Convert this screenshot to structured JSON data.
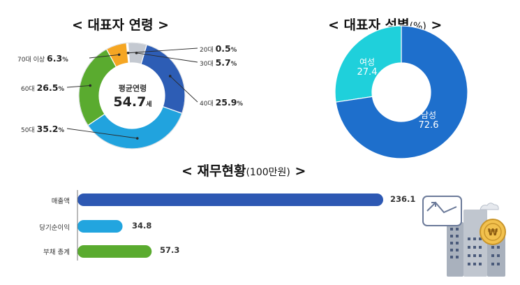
{
  "titles": {
    "age": "< 대표자 연령 >",
    "gender": "< 대표자 성별",
    "gender_unit": "(%)",
    "gender_close": " >",
    "finance": "< 재무현황",
    "finance_unit": "(100만원)",
    "finance_close": " >"
  },
  "age_center": {
    "label": "평균연령",
    "value": "54.7",
    "unit": "세"
  },
  "age_labels": [
    {
      "cat": "20대",
      "val": "0.5",
      "unit": "%"
    },
    {
      "cat": "30대",
      "val": "5.7",
      "unit": "%"
    },
    {
      "cat": "40대",
      "val": "25.9",
      "unit": "%"
    },
    {
      "cat": "50대",
      "val": "35.2",
      "unit": "%"
    },
    {
      "cat": "60대",
      "val": "26.5",
      "unit": "%"
    },
    {
      "cat": "70대 이상",
      "val": "6.3",
      "unit": "%"
    }
  ],
  "gender_labels": [
    {
      "name": "여성",
      "val": "27.4"
    },
    {
      "name": "남성",
      "val": "72.6"
    }
  ],
  "bar_labels": [
    {
      "cat": "매출액",
      "val": "236.1"
    },
    {
      "cat": "당기순이익",
      "val": "34.8"
    },
    {
      "cat": "부채 총계",
      "val": "57.3"
    }
  ],
  "colors": {
    "age": [
      "#ffffff",
      "#c4c9d1",
      "#2d5db5",
      "#21a3de",
      "#5aab2f",
      "#f5a623"
    ],
    "gender": [
      "#1fd0db",
      "#1e6fcc"
    ],
    "bars": [
      "#2d58b3",
      "#22a5df",
      "#5aab2f"
    ]
  },
  "chart_data": [
    {
      "type": "pie",
      "title": "< 대표자 연령 >",
      "categories": [
        "20대",
        "30대",
        "40대",
        "50대",
        "60대",
        "70대 이상"
      ],
      "values": [
        0.5,
        5.7,
        25.9,
        35.2,
        26.5,
        6.3
      ],
      "center_text": "평균연령 54.7세"
    },
    {
      "type": "pie",
      "title": "< 대표자 성별(%) >",
      "categories": [
        "여성",
        "남성"
      ],
      "values": [
        27.4,
        72.6
      ]
    },
    {
      "type": "bar",
      "title": "< 재무현황(100만원) >",
      "categories": [
        "매출액",
        "당기순이익",
        "부채 총계"
      ],
      "values": [
        236.1,
        34.8,
        57.3
      ],
      "orientation": "horizontal"
    }
  ]
}
